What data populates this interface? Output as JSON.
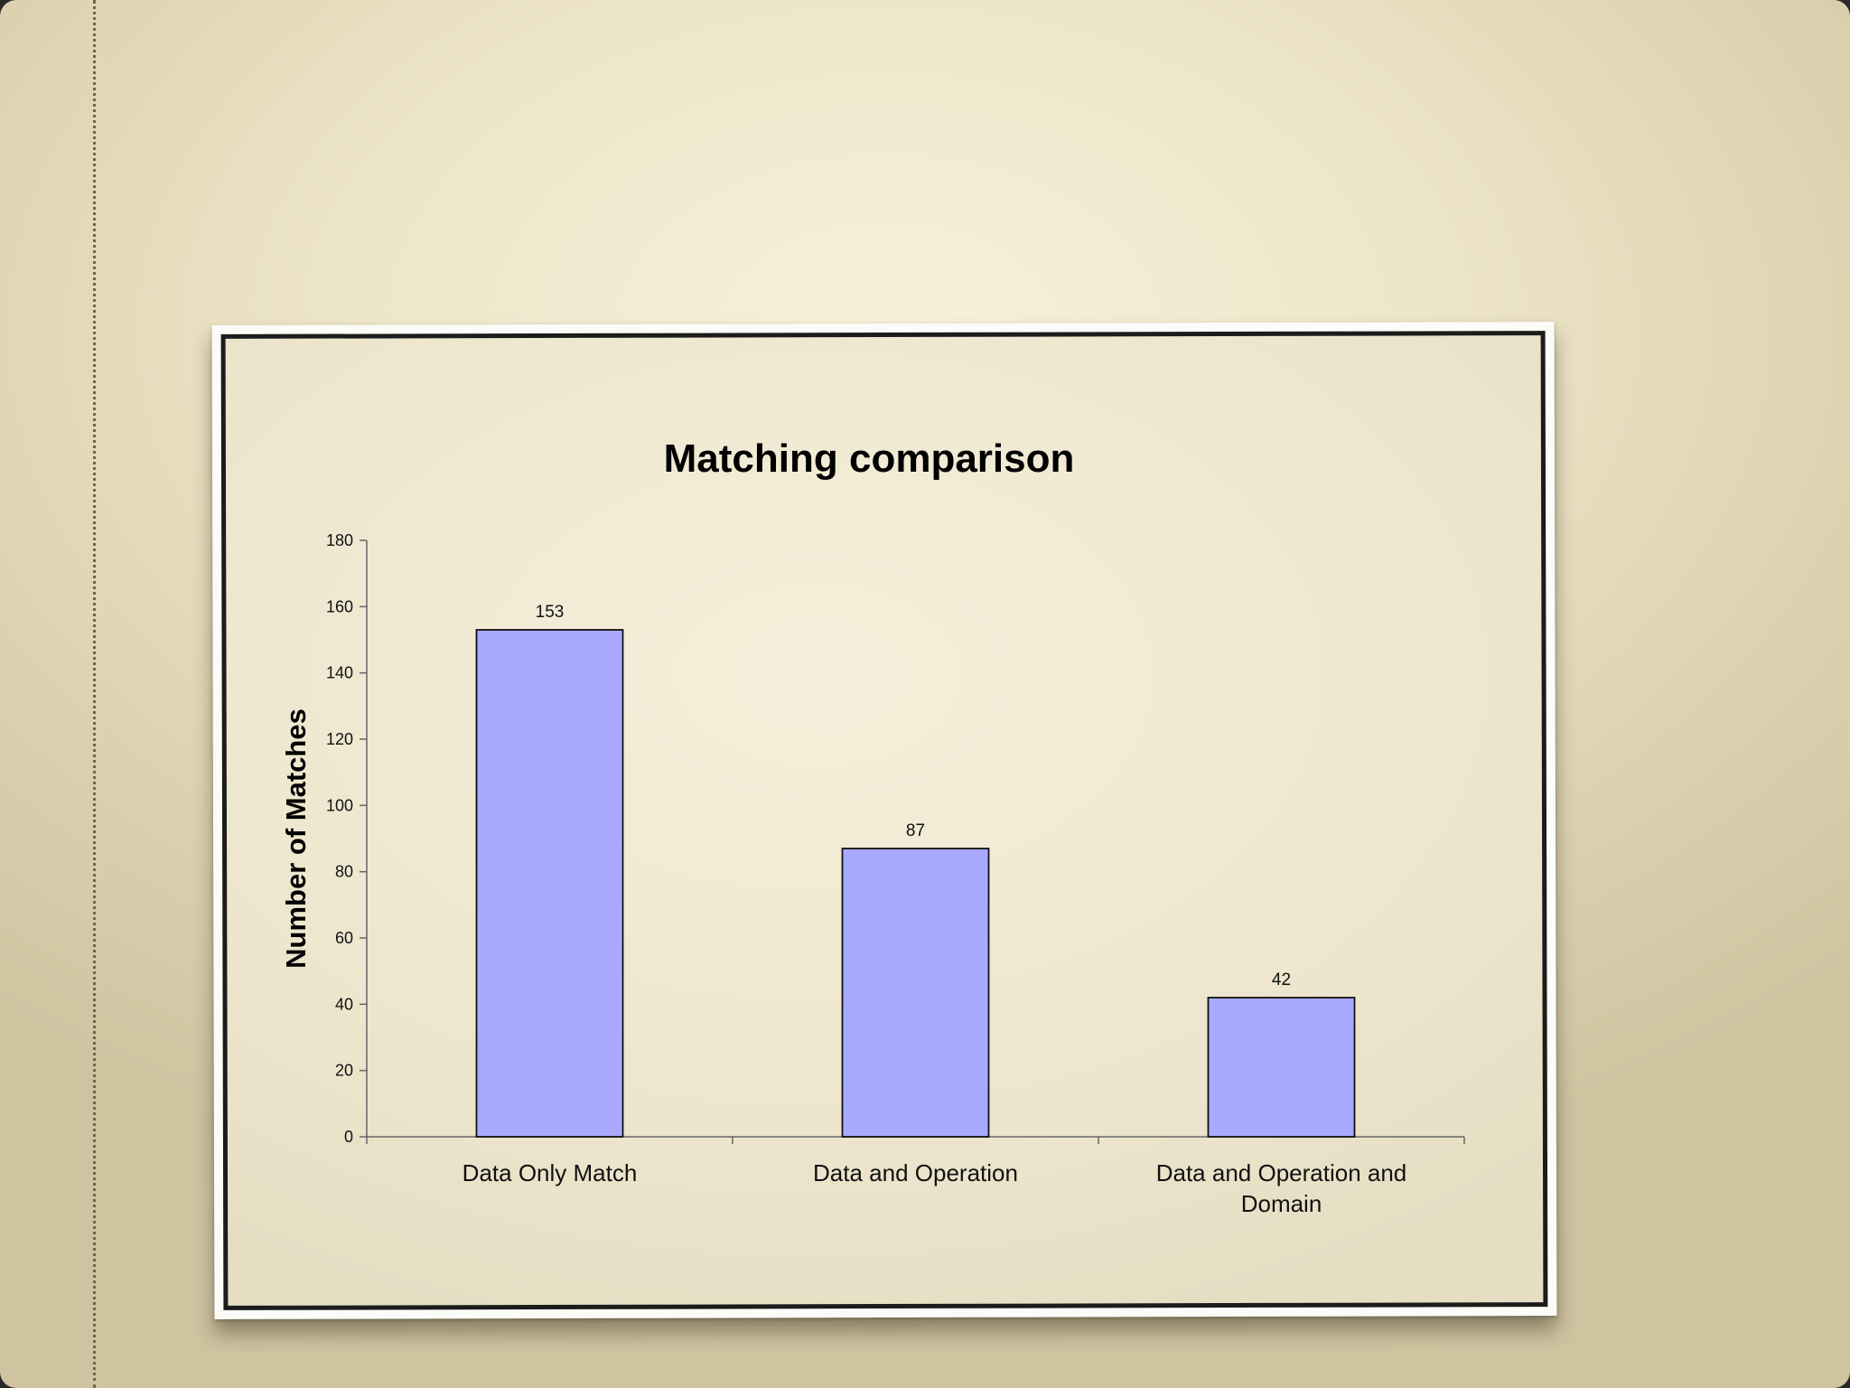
{
  "chart_data": {
    "type": "bar",
    "title": "Matching comparison",
    "xlabel": "",
    "ylabel": "Number of Matches",
    "categories": [
      [
        "Data Only Match"
      ],
      [
        "Data and Operation"
      ],
      [
        "Data and Operation and",
        "Domain"
      ]
    ],
    "values": [
      153,
      87,
      42
    ],
    "data_labels": [
      "153",
      "87",
      "42"
    ],
    "ylim": [
      0,
      180
    ],
    "yticks": [
      0,
      20,
      40,
      60,
      80,
      100,
      120,
      140,
      160,
      180
    ],
    "bar_color": "#a9aaff",
    "bar_edge_color": "#111111",
    "grid": false,
    "legend": "none"
  }
}
